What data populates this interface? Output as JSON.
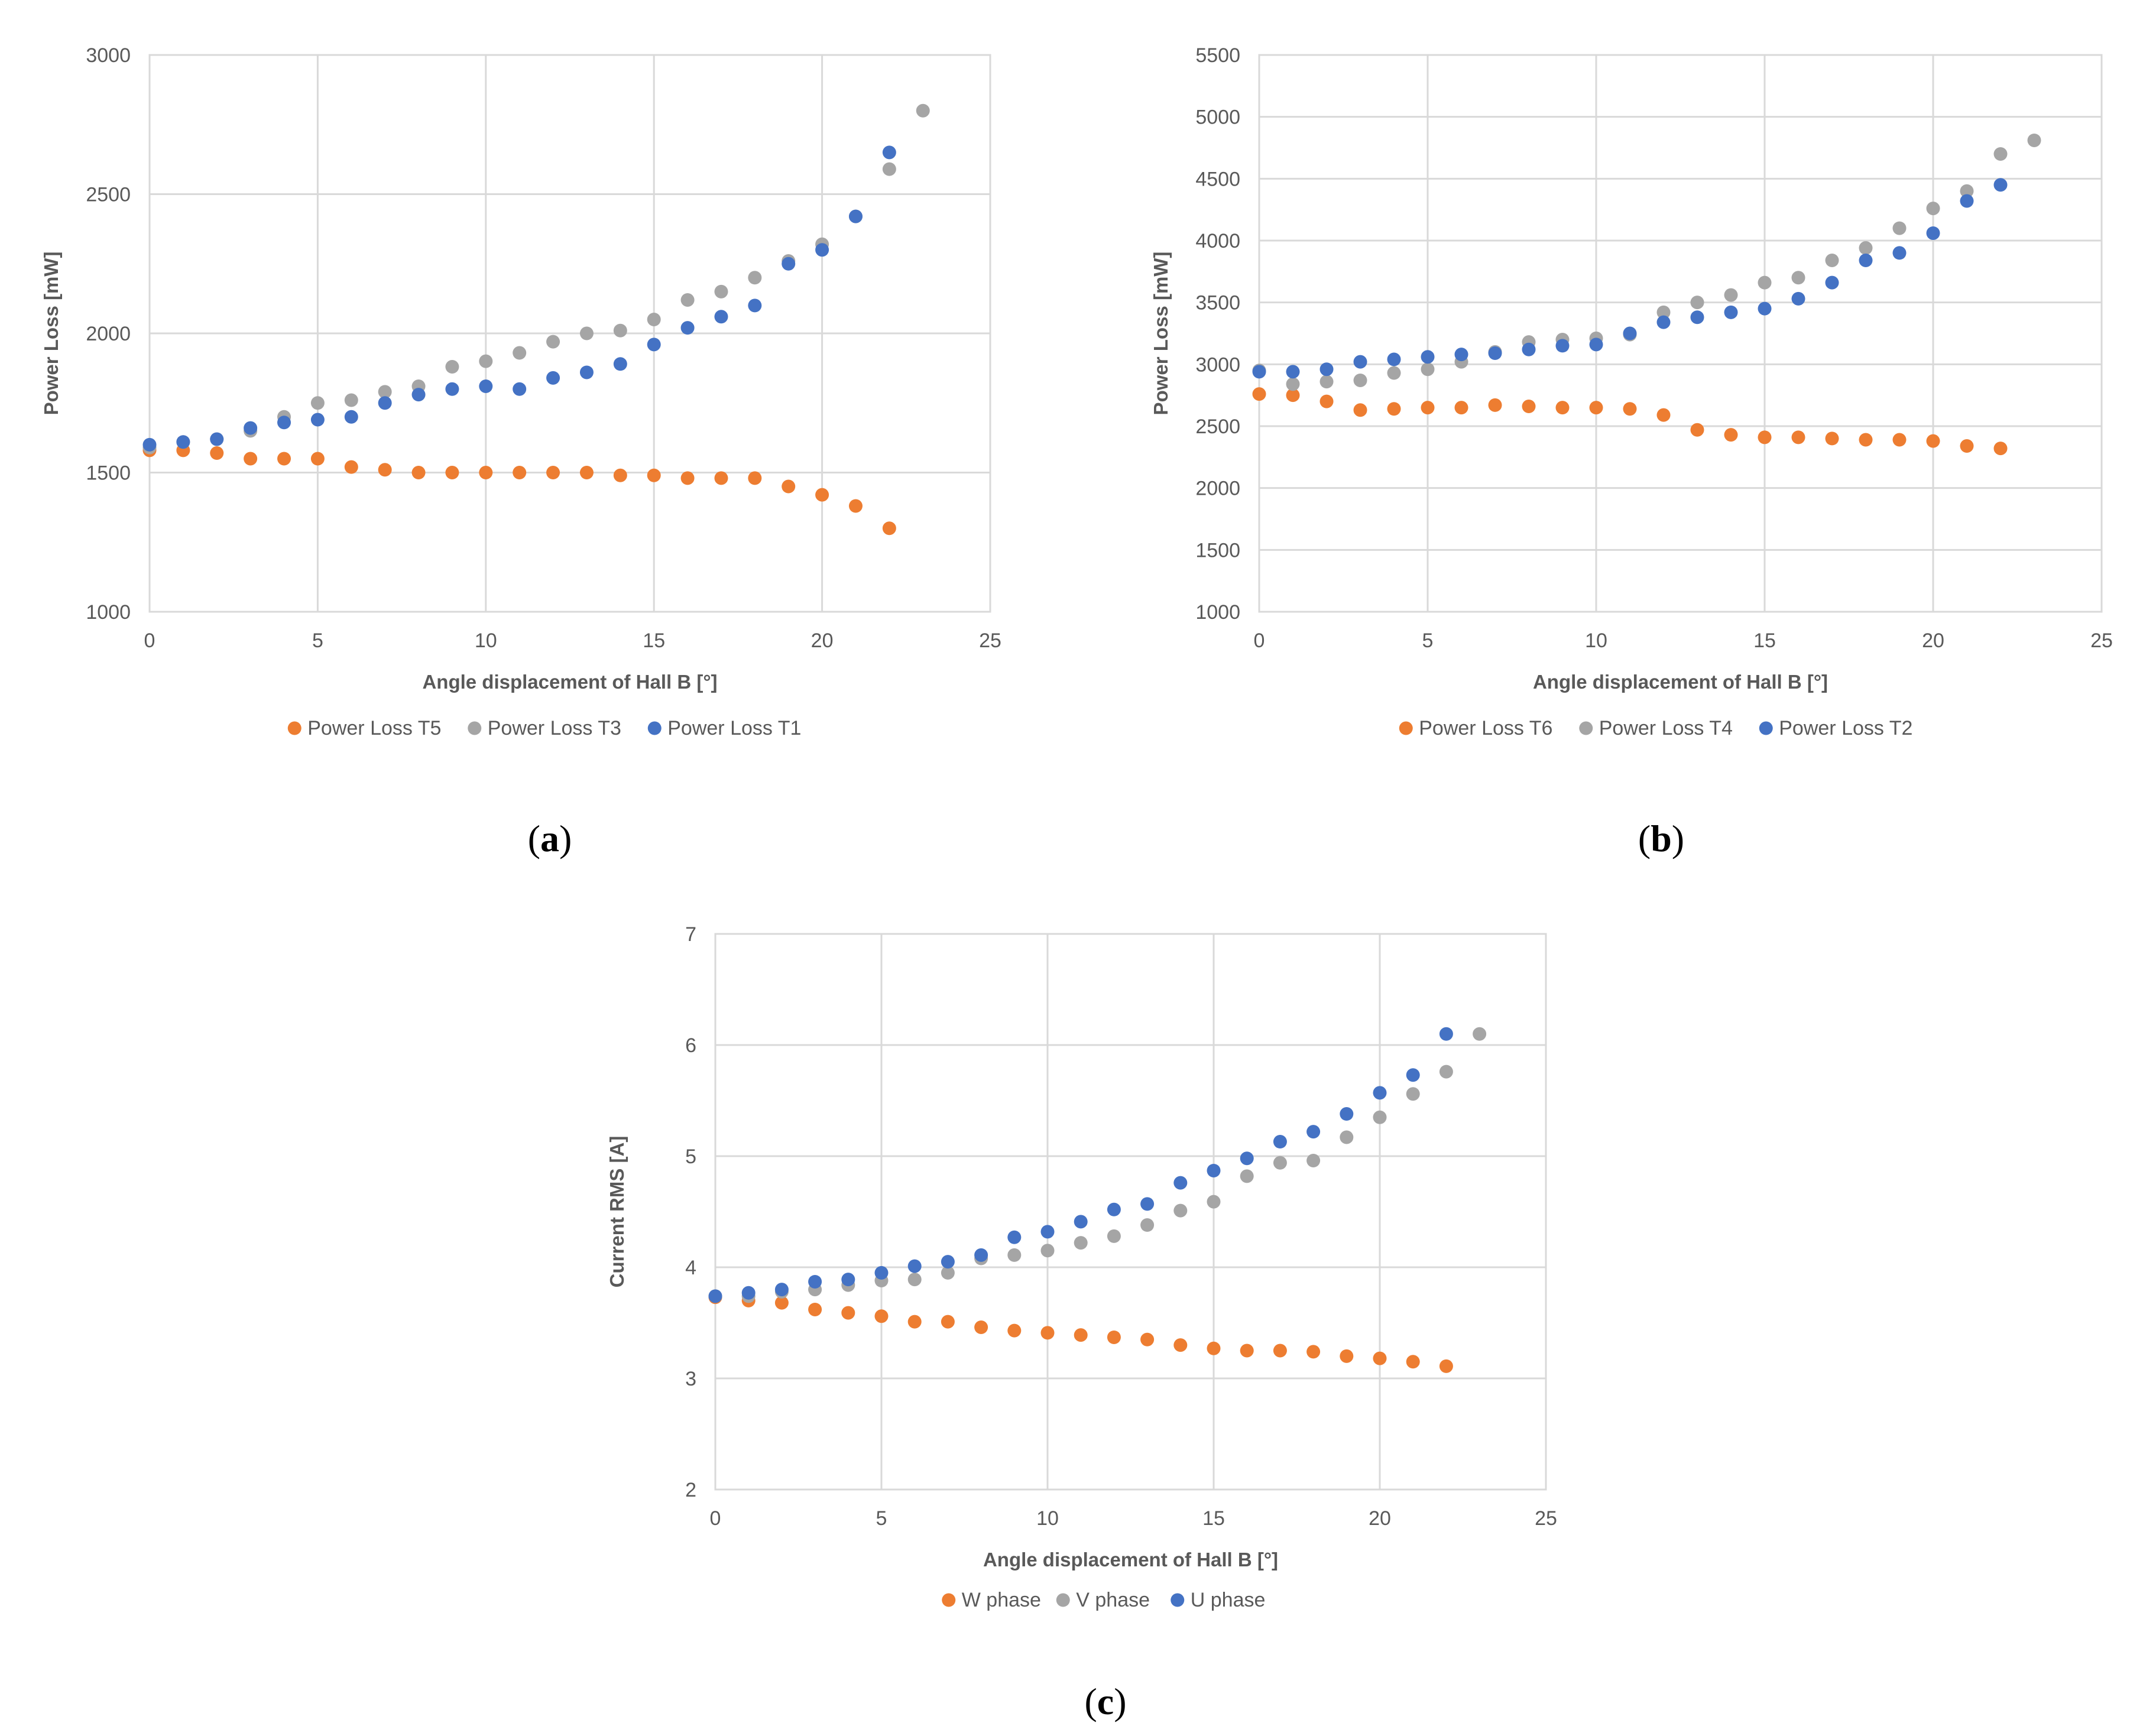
{
  "chart_data": [
    {
      "panel": "a",
      "type": "scatter",
      "title": "",
      "xlabel": "Angle displacement of Hall B [°]",
      "ylabel": "Power Loss [mW]",
      "xlim": [
        0,
        25
      ],
      "ylim": [
        1000,
        3000
      ],
      "xticks": [
        0,
        5,
        10,
        15,
        20,
        25
      ],
      "yticks": [
        1000,
        1500,
        2000,
        2500,
        3000
      ],
      "grid": true,
      "legend_position": "bottom",
      "series": [
        {
          "name": "Power Loss T5",
          "color": "#ED7D31",
          "x": [
            0,
            1,
            2,
            3,
            4,
            5,
            6,
            7,
            8,
            9,
            10,
            11,
            12,
            13,
            14,
            15,
            16,
            17,
            18,
            19,
            20,
            21,
            22
          ],
          "y": [
            1580,
            1580,
            1570,
            1550,
            1550,
            1550,
            1520,
            1510,
            1500,
            1500,
            1500,
            1500,
            1500,
            1500,
            1490,
            1490,
            1480,
            1480,
            1480,
            1450,
            1420,
            1380,
            1300
          ]
        },
        {
          "name": "Power Loss T3",
          "color": "#A5A5A5",
          "x": [
            0,
            1,
            2,
            3,
            4,
            5,
            6,
            7,
            8,
            9,
            10,
            11,
            12,
            13,
            14,
            15,
            16,
            17,
            18,
            19,
            20,
            21,
            22,
            23
          ],
          "y": [
            1590,
            1610,
            1620,
            1650,
            1700,
            1750,
            1760,
            1790,
            1810,
            1880,
            1900,
            1930,
            1970,
            2000,
            2010,
            2050,
            2120,
            2150,
            2200,
            2260,
            2320,
            2420,
            2590,
            2800
          ]
        },
        {
          "name": "Power Loss T1",
          "color": "#4472C4",
          "x": [
            0,
            1,
            2,
            3,
            4,
            5,
            6,
            7,
            8,
            9,
            10,
            11,
            12,
            13,
            14,
            15,
            16,
            17,
            18,
            19,
            20,
            21,
            22
          ],
          "y": [
            1600,
            1610,
            1620,
            1660,
            1680,
            1690,
            1700,
            1750,
            1780,
            1800,
            1810,
            1800,
            1840,
            1860,
            1890,
            1960,
            2020,
            2060,
            2100,
            2250,
            2300,
            2420,
            2650
          ]
        }
      ]
    },
    {
      "panel": "b",
      "type": "scatter",
      "title": "",
      "xlabel": "Angle displacement of Hall B [°]",
      "ylabel": "Power Loss [mW]",
      "xlim": [
        0,
        25
      ],
      "ylim": [
        1000,
        5500
      ],
      "xticks": [
        0,
        5,
        10,
        15,
        20,
        25
      ],
      "yticks": [
        1000,
        1500,
        2000,
        2500,
        3000,
        3500,
        4000,
        4500,
        5000,
        5500
      ],
      "grid": true,
      "legend_position": "bottom",
      "series": [
        {
          "name": "Power Loss T6",
          "color": "#ED7D31",
          "x": [
            0,
            1,
            2,
            3,
            4,
            5,
            6,
            7,
            8,
            9,
            10,
            11,
            12,
            13,
            14,
            15,
            16,
            17,
            18,
            19,
            20,
            21,
            22
          ],
          "y": [
            2760,
            2750,
            2700,
            2630,
            2640,
            2650,
            2650,
            2670,
            2660,
            2650,
            2650,
            2640,
            2590,
            2470,
            2430,
            2410,
            2410,
            2400,
            2390,
            2390,
            2380,
            2340,
            2320
          ]
        },
        {
          "name": "Power Loss T4",
          "color": "#A5A5A5",
          "x": [
            0,
            1,
            2,
            3,
            4,
            5,
            6,
            7,
            8,
            9,
            10,
            11,
            12,
            13,
            14,
            15,
            16,
            17,
            18,
            19,
            20,
            21,
            22,
            23
          ],
          "y": [
            2950,
            2840,
            2860,
            2870,
            2930,
            2960,
            3020,
            3100,
            3180,
            3200,
            3210,
            3240,
            3420,
            3500,
            3560,
            3660,
            3700,
            3840,
            3940,
            4100,
            4260,
            4400,
            4700,
            4810
          ]
        },
        {
          "name": "Power Loss T2",
          "color": "#4472C4",
          "x": [
            0,
            1,
            2,
            3,
            4,
            5,
            6,
            7,
            8,
            9,
            10,
            11,
            12,
            13,
            14,
            15,
            16,
            17,
            18,
            19,
            20,
            21,
            22
          ],
          "y": [
            2940,
            2940,
            2960,
            3020,
            3040,
            3060,
            3080,
            3090,
            3120,
            3150,
            3160,
            3250,
            3340,
            3380,
            3420,
            3450,
            3530,
            3660,
            3840,
            3900,
            4060,
            4320,
            4450
          ]
        }
      ]
    },
    {
      "panel": "c",
      "type": "scatter",
      "title": "",
      "xlabel": "Angle displacement of Hall B [°]",
      "ylabel": "Current RMS [A]",
      "xlim": [
        0,
        25
      ],
      "ylim": [
        2,
        7
      ],
      "xticks": [
        0,
        5,
        10,
        15,
        20,
        25
      ],
      "yticks": [
        2,
        3,
        4,
        5,
        6,
        7
      ],
      "grid": true,
      "legend_position": "bottom",
      "series": [
        {
          "name": "W phase",
          "color": "#ED7D31",
          "x": [
            0,
            1,
            2,
            3,
            4,
            5,
            6,
            7,
            8,
            9,
            10,
            11,
            12,
            13,
            14,
            15,
            16,
            17,
            18,
            19,
            20,
            21,
            22
          ],
          "y": [
            3.73,
            3.7,
            3.68,
            3.62,
            3.59,
            3.56,
            3.51,
            3.51,
            3.46,
            3.43,
            3.41,
            3.39,
            3.37,
            3.35,
            3.3,
            3.27,
            3.25,
            3.25,
            3.24,
            3.2,
            3.18,
            3.15,
            3.11
          ]
        },
        {
          "name": "V phase",
          "color": "#A5A5A5",
          "x": [
            0,
            1,
            2,
            3,
            4,
            5,
            6,
            7,
            8,
            9,
            10,
            11,
            12,
            13,
            14,
            15,
            16,
            17,
            18,
            19,
            20,
            21,
            22,
            23
          ],
          "y": [
            3.74,
            3.74,
            3.78,
            3.8,
            3.84,
            3.88,
            3.89,
            3.95,
            4.08,
            4.11,
            4.15,
            4.22,
            4.28,
            4.38,
            4.51,
            4.59,
            4.82,
            4.94,
            4.96,
            5.17,
            5.35,
            5.56,
            5.76,
            6.1
          ]
        },
        {
          "name": "U phase",
          "color": "#4472C4",
          "x": [
            0,
            1,
            2,
            3,
            4,
            5,
            6,
            7,
            8,
            9,
            10,
            11,
            12,
            13,
            14,
            15,
            16,
            17,
            18,
            19,
            20,
            21,
            22
          ],
          "y": [
            3.74,
            3.77,
            3.8,
            3.87,
            3.89,
            3.95,
            4.01,
            4.05,
            4.11,
            4.27,
            4.32,
            4.41,
            4.52,
            4.57,
            4.76,
            4.87,
            4.98,
            5.13,
            5.22,
            5.38,
            5.57,
            5.73,
            6.1
          ]
        }
      ]
    }
  ],
  "panel_labels": [
    {
      "id": "a",
      "text": "a"
    },
    {
      "id": "b",
      "text": "b"
    },
    {
      "id": "c",
      "text": "c"
    }
  ]
}
